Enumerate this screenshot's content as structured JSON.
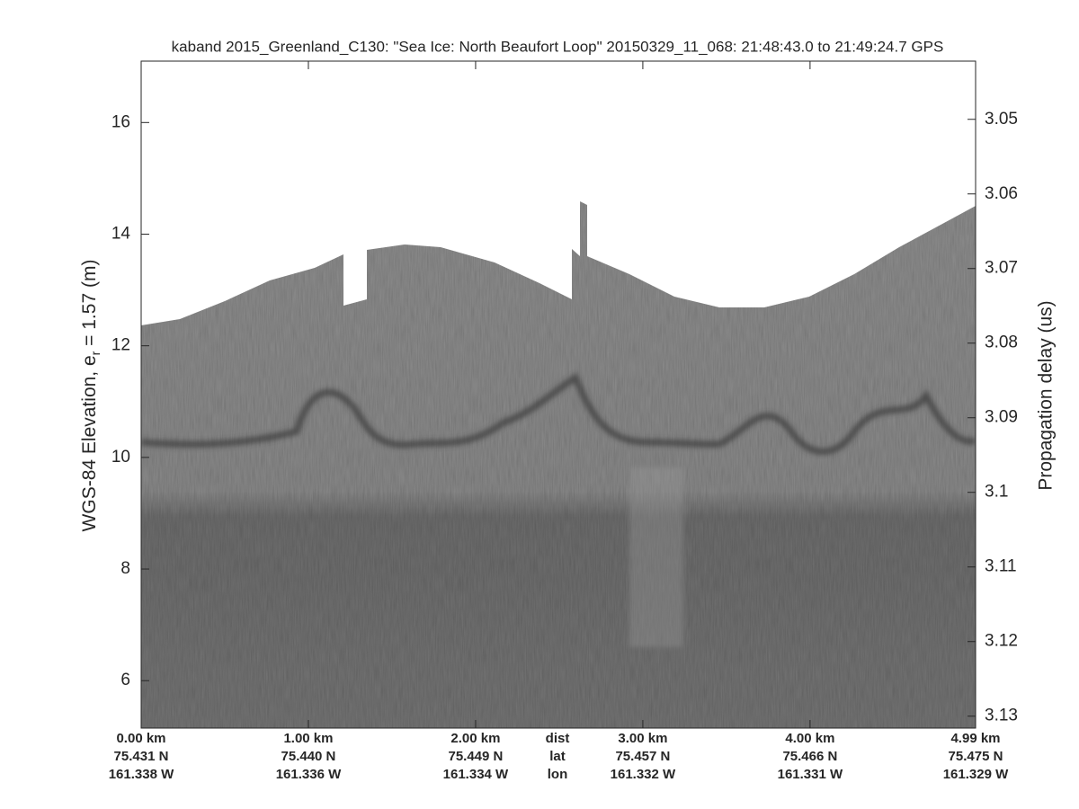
{
  "chart_data": {
    "type": "echogram",
    "title": "kaband 2015_Greenland_C130: \"Sea Ice: North Beaufort Loop\"  20150329_11_068: 21:48:43.0 to 21:49:24.7 GPS",
    "ylabel": [
      "WGS-84 Elevation, e",
      "r",
      " = 1.57 (m)"
    ],
    "y2label": "Propagation delay (us)",
    "ylim": [
      5.15,
      17.1
    ],
    "yticks": [
      6,
      8,
      10,
      12,
      14,
      16
    ],
    "y2lim": [
      3.1316,
      3.0422
    ],
    "y2ticks": [
      3.05,
      3.06,
      3.07,
      3.08,
      3.09,
      3.1,
      3.11,
      3.12,
      3.13
    ],
    "xlim": [
      0,
      4.99
    ],
    "xticks": [
      {
        "value": 0,
        "label": "0.00 km"
      },
      {
        "value": 1,
        "label": "1.00 km"
      },
      {
        "value": 2,
        "label": "2.00 km"
      },
      {
        "value": 3,
        "label": "3.00 km"
      },
      {
        "value": 4,
        "label": "4.00 km"
      },
      {
        "value": 4.99,
        "label": "4.99 km"
      }
    ],
    "lat_labels": [
      "75.431 N",
      "75.440 N",
      "75.449 N",
      "75.457 N",
      "75.466 N",
      "75.475 N"
    ],
    "lon_labels": [
      "161.338 W",
      "161.336 W",
      "161.334 W",
      "161.332 W",
      "161.331 W",
      "161.329 W"
    ],
    "row_labels": [
      "dist",
      "lat",
      "lon"
    ],
    "grid": false
  }
}
